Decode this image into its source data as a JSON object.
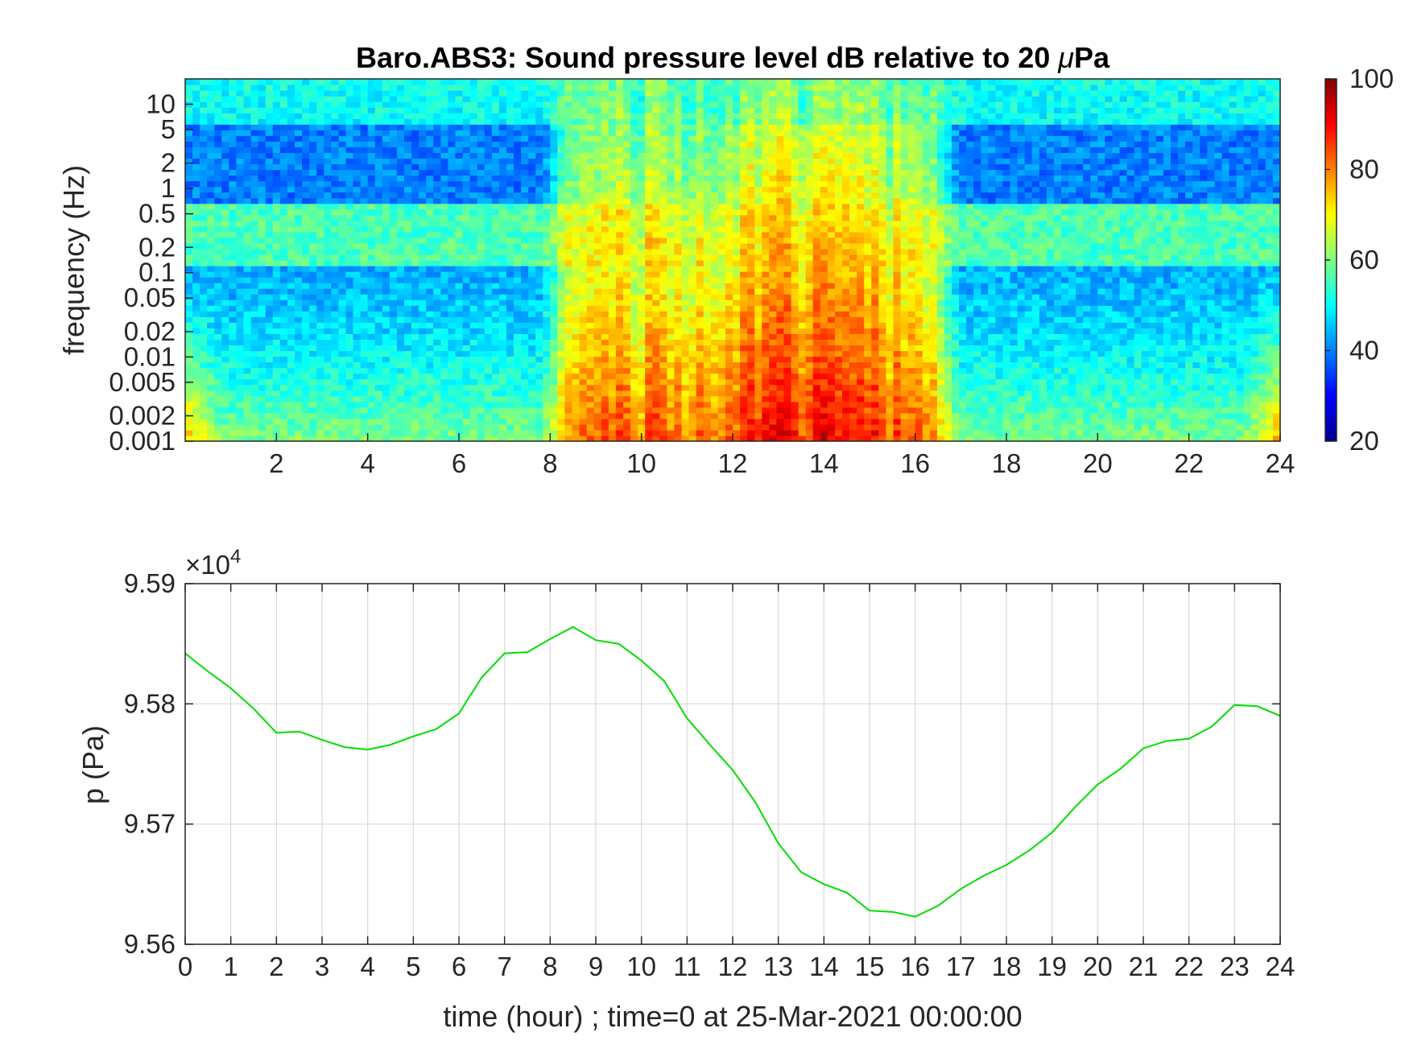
{
  "colors": {
    "pressure_line": "#00dd00",
    "colormap": "jet"
  },
  "chart_data": [
    {
      "type": "heatmap",
      "title_main": "Baro.ABS3: Sound pressure level dB relative to 20 ",
      "title_mu": "μ",
      "title_end": "Pa",
      "ylabel": "frequency (Hz)",
      "xlabel": "",
      "xlim": [
        0,
        24
      ],
      "ylim": [
        0.001,
        20
      ],
      "y_scale": "log",
      "x_ticks": [
        2,
        4,
        6,
        8,
        10,
        12,
        14,
        16,
        18,
        20,
        22,
        24
      ],
      "x_tick_labels": [
        "2",
        "4",
        "6",
        "8",
        "10",
        "12",
        "14",
        "16",
        "18",
        "20",
        "22",
        "24"
      ],
      "y_ticks": [
        0.001,
        0.002,
        0.005,
        0.01,
        0.02,
        0.05,
        0.1,
        0.2,
        0.5,
        1,
        2,
        5,
        10
      ],
      "y_tick_labels": [
        "0.001",
        "0.002",
        "0.005",
        "0.01",
        "0.02",
        "0.05",
        "0.1",
        "0.2",
        "0.5",
        "1",
        "2",
        "5",
        "10"
      ],
      "colorbar": {
        "range": [
          20,
          100
        ],
        "ticks": [
          20,
          40,
          60,
          80,
          100
        ],
        "tick_labels": [
          "20",
          "40",
          "60",
          "80",
          "100"
        ],
        "placement": "right"
      },
      "description_levels": {
        "quiet_hours": [
          [
            0,
            7.8
          ],
          [
            17,
            24
          ]
        ],
        "active_hours": [
          7.8,
          17
        ],
        "peak_hours": [
          12.5,
          15
        ]
      }
    },
    {
      "type": "line",
      "xlabel": "time (hour) ; time=0 at 25-Mar-2021 00:00:00",
      "ylabel": "p (Pa)",
      "y_multiplier_base": "×10",
      "y_multiplier_exp": "4",
      "xlim": [
        0,
        24
      ],
      "ylim": [
        9.56,
        9.59
      ],
      "grid": true,
      "x_ticks": [
        0,
        1,
        2,
        3,
        4,
        5,
        6,
        7,
        8,
        9,
        10,
        11,
        12,
        13,
        14,
        15,
        16,
        17,
        18,
        19,
        20,
        21,
        22,
        23,
        24
      ],
      "x_tick_labels": [
        "0",
        "1",
        "2",
        "3",
        "4",
        "5",
        "6",
        "7",
        "8",
        "9",
        "10",
        "11",
        "12",
        "13",
        "14",
        "15",
        "16",
        "17",
        "18",
        "19",
        "20",
        "21",
        "22",
        "23",
        "24"
      ],
      "y_ticks": [
        9.56,
        9.57,
        9.58,
        9.59
      ],
      "y_tick_labels": [
        "9.56",
        "9.57",
        "9.58",
        "9.59"
      ],
      "series": [
        {
          "x": [
            0,
            0.5,
            1,
            1.5,
            2,
            2.5,
            3,
            3.5,
            4,
            4.5,
            5,
            5.5,
            6,
            6.5,
            7,
            7.5,
            8,
            8.5,
            9,
            9.5,
            10,
            10.5,
            11,
            11.5,
            12,
            12.5,
            13,
            13.5,
            14,
            14.5,
            15,
            15.5,
            16,
            16.5,
            17,
            17.5,
            18,
            18.5,
            19,
            19.5,
            20,
            20.5,
            21,
            21.5,
            22,
            22.5,
            23,
            23.5,
            24
          ],
          "values": [
            9.5842,
            9.5827,
            9.5813,
            9.5796,
            9.5776,
            9.5777,
            9.577,
            9.5764,
            9.5762,
            9.5766,
            9.5773,
            9.5779,
            9.5792,
            9.5822,
            9.5842,
            9.5843,
            9.5854,
            9.5864,
            9.5853,
            9.585,
            9.5836,
            9.5819,
            9.5788,
            9.5766,
            9.5745,
            9.5718,
            9.5684,
            9.566,
            9.565,
            9.5643,
            9.5628,
            9.5627,
            9.5623,
            9.5632,
            9.5646,
            9.5657,
            9.5666,
            9.5678,
            9.5693,
            9.5714,
            9.5733,
            9.5746,
            9.5763,
            9.5769,
            9.5771,
            9.5781,
            9.5799,
            9.5798,
            9.579
          ]
        }
      ]
    }
  ]
}
